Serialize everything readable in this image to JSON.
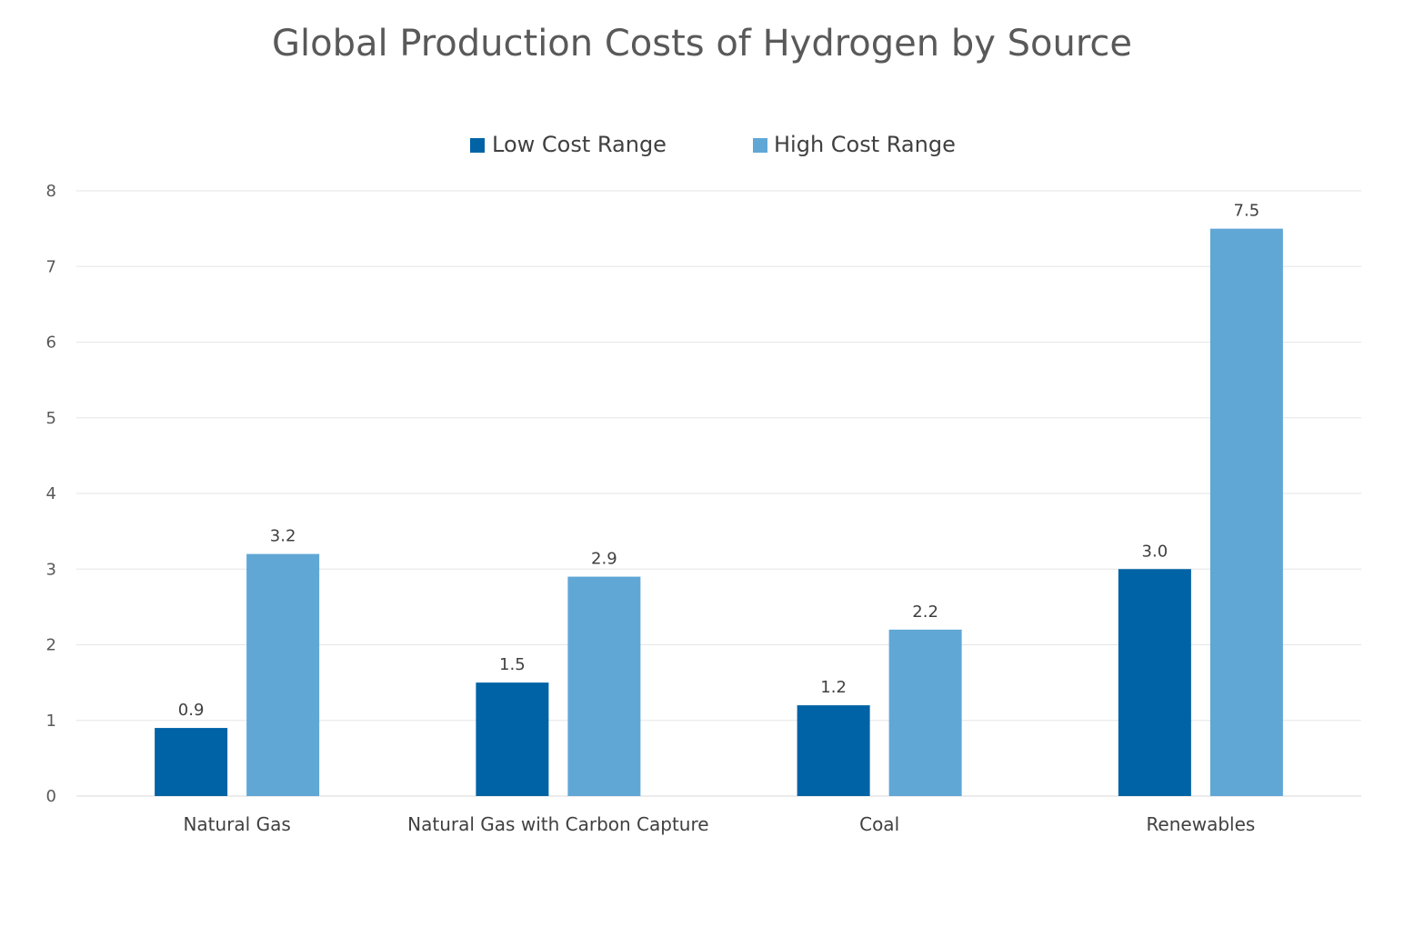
{
  "chart_data": {
    "type": "bar",
    "title": "Global Production Costs of Hydrogen by Source",
    "xlabel": "",
    "ylabel": "",
    "categories": [
      "Natural Gas",
      "Natural Gas with Carbon Capture",
      "Coal",
      "Renewables"
    ],
    "series": [
      {
        "name": "Low Cost Range",
        "color": "#0063a6",
        "values": [
          0.9,
          1.5,
          1.2,
          3.0
        ],
        "labels": [
          "0.9",
          "1.5",
          "1.2",
          "3.0"
        ]
      },
      {
        "name": "High Cost Range",
        "color": "#60a7d6",
        "values": [
          3.2,
          2.9,
          2.2,
          7.5
        ],
        "labels": [
          "3.2",
          "2.9",
          "2.2",
          "7.5"
        ]
      }
    ],
    "ylim": [
      0,
      8
    ],
    "yticks": [
      "0",
      "1",
      "2",
      "3",
      "4",
      "5",
      "6",
      "7",
      "8"
    ],
    "grid": true,
    "legend_position": "top-center"
  }
}
